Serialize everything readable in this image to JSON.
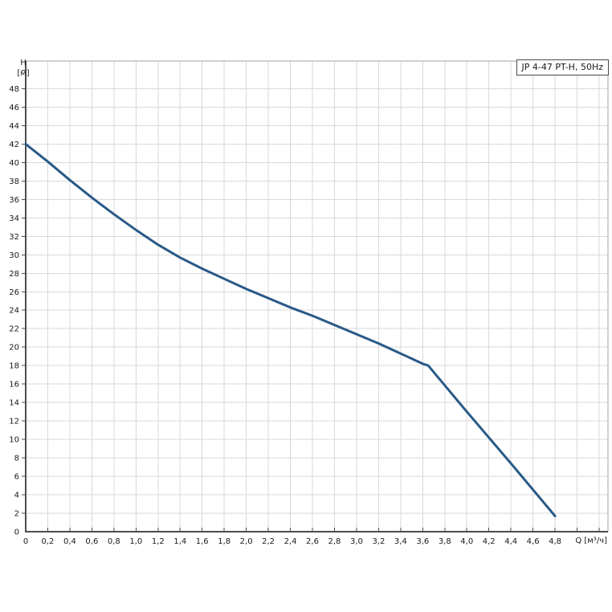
{
  "chart_data": {
    "type": "line",
    "title": "JP 4-47 PT-H, 50Hz",
    "x_axis": {
      "label": "Q [м³/ч]",
      "min": 0,
      "max": 5.28,
      "grid_step": 0.2,
      "grid_count": 26,
      "tick_step": 0.2,
      "tick_count": 26,
      "label_step": 0.2,
      "tick_labels": [
        "0",
        "0,2",
        "0,4",
        "0,6",
        "0,8",
        "1,0",
        "1,2",
        "1,4",
        "1,6",
        "1,8",
        "2,0",
        "2,2",
        "2,4",
        "2,6",
        "2,8",
        "3,0",
        "3,2",
        "3,4",
        "3,6",
        "3,8",
        "4,0",
        "4,2",
        "4,4",
        "4,6",
        "4,8"
      ]
    },
    "y_axis": {
      "label_line1": "H",
      "label_line2": "[м]",
      "min": 0,
      "max": 51,
      "grid_step": 2,
      "grid_count": 24,
      "tick_step": 2,
      "tick_count": 25,
      "label_step": 2,
      "tick_labels": [
        "0",
        "2",
        "4",
        "6",
        "8",
        "10",
        "12",
        "14",
        "16",
        "18",
        "20",
        "22",
        "24",
        "26",
        "28",
        "30",
        "32",
        "34",
        "36",
        "38",
        "40",
        "42",
        "44",
        "46",
        "48"
      ]
    },
    "series": [
      {
        "name": "JP 4-47 PT-H, 50Hz",
        "color": "#295a88",
        "points": [
          [
            0,
            42.0
          ],
          [
            0.2,
            40.1
          ],
          [
            0.4,
            38.1
          ],
          [
            0.6,
            36.2
          ],
          [
            0.8,
            34.4
          ],
          [
            1.0,
            32.7
          ],
          [
            1.2,
            31.1
          ],
          [
            1.4,
            29.7
          ],
          [
            1.6,
            28.5
          ],
          [
            1.8,
            27.4
          ],
          [
            2.0,
            26.3
          ],
          [
            2.2,
            25.3
          ],
          [
            2.4,
            24.3
          ],
          [
            2.6,
            23.4
          ],
          [
            2.8,
            22.4
          ],
          [
            3.0,
            21.4
          ],
          [
            3.2,
            20.4
          ],
          [
            3.4,
            19.3
          ],
          [
            3.6,
            18.2
          ],
          [
            3.65,
            18.0
          ],
          [
            4.0,
            13.0
          ],
          [
            4.4,
            7.4
          ],
          [
            4.8,
            1.7
          ]
        ]
      }
    ],
    "colors": {
      "grid": "#d9d9d9",
      "plot_border": "#a3a3a3",
      "axis": "#4d4d4d",
      "tick": "#4d4d4d",
      "text": "#1a1a1a",
      "background": "#ffffff"
    },
    "legend_position": "top-right-box",
    "grid": "on"
  }
}
